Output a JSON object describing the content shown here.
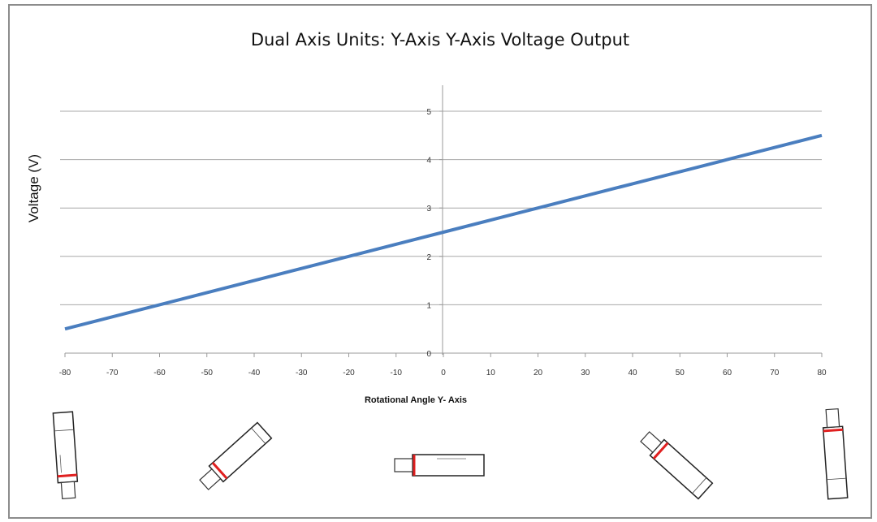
{
  "chart_data": {
    "type": "line",
    "title": "Dual Axis Units: Y-Axis Y-Axis Voltage Output",
    "xlabel": "Rotational Angle Y- Axis",
    "ylabel": "Voltage (V)",
    "xlim": [
      -80,
      80
    ],
    "ylim": [
      0,
      5
    ],
    "x_ticks": [
      "-80",
      "-70",
      "-60",
      "-50",
      "-40",
      "-30",
      "-20",
      "-10",
      "0",
      "10",
      "20",
      "30",
      "40",
      "50",
      "60",
      "70",
      "80"
    ],
    "y_ticks": [
      "0",
      "1",
      "2",
      "3",
      "4",
      "5"
    ],
    "grid": "horizontal",
    "legend": "none",
    "series": [
      {
        "x": [
          -80,
          -60,
          -40,
          -20,
          0,
          20,
          40,
          60,
          80
        ],
        "y": [
          0.5,
          1.0,
          1.5,
          2.0,
          2.5,
          3.0,
          3.5,
          4.0,
          4.5
        ],
        "color": "#4a7ebf"
      }
    ]
  },
  "illustrations": {
    "sensor_orientations": [
      "-80",
      "-40",
      "0",
      "40",
      "80"
    ],
    "marker_color": "#e02020"
  }
}
